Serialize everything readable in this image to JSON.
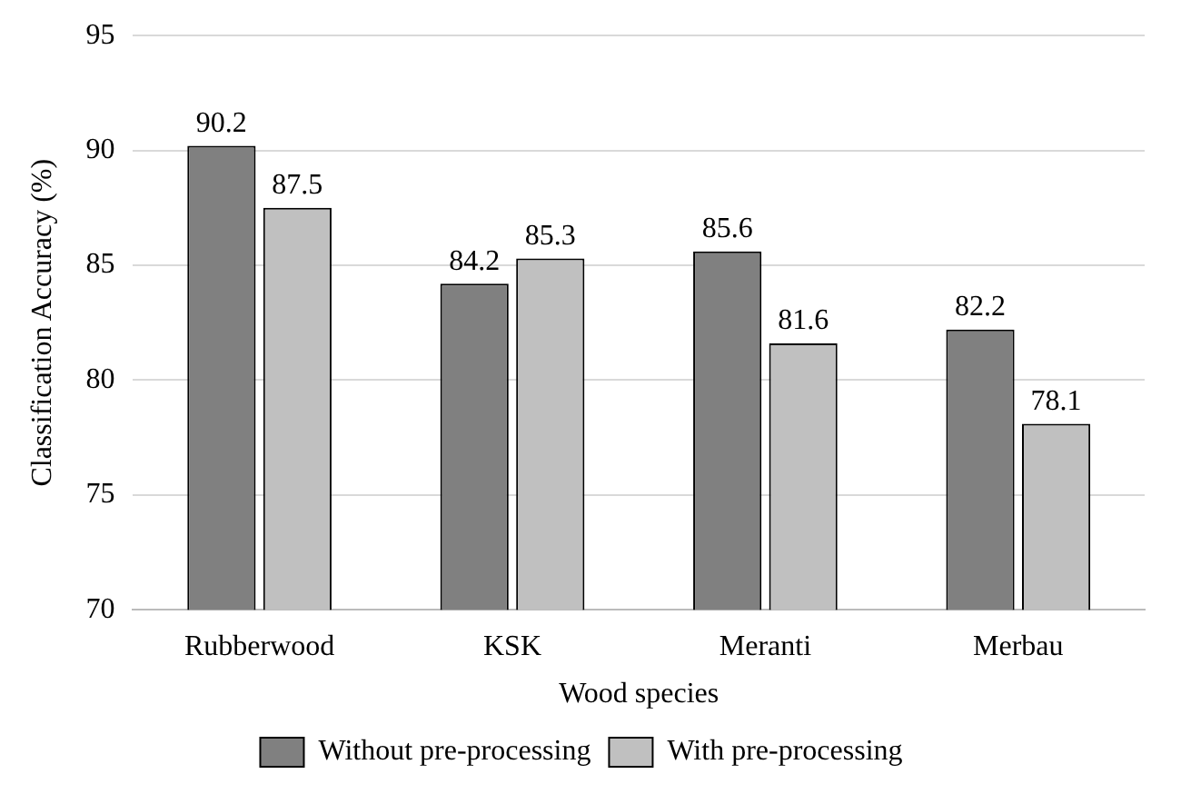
{
  "chart_data": {
    "type": "bar",
    "xlabel": "Wood species",
    "ylabel": "Classification Accuracy (%)",
    "categories": [
      "Rubberwood",
      "KSK",
      "Meranti",
      "Merbau"
    ],
    "series": [
      {
        "name": "Without pre-processing",
        "color": "#808080",
        "values": [
          90.2,
          84.2,
          85.6,
          82.2
        ]
      },
      {
        "name": "With pre-processing",
        "color": "#c0c0c0",
        "values": [
          87.5,
          85.3,
          81.6,
          78.1
        ]
      }
    ],
    "ylim": [
      70,
      95
    ],
    "yticks": [
      70,
      75,
      80,
      85,
      90,
      95
    ],
    "grid": "y",
    "legend": "bottom",
    "data_labels": true
  }
}
